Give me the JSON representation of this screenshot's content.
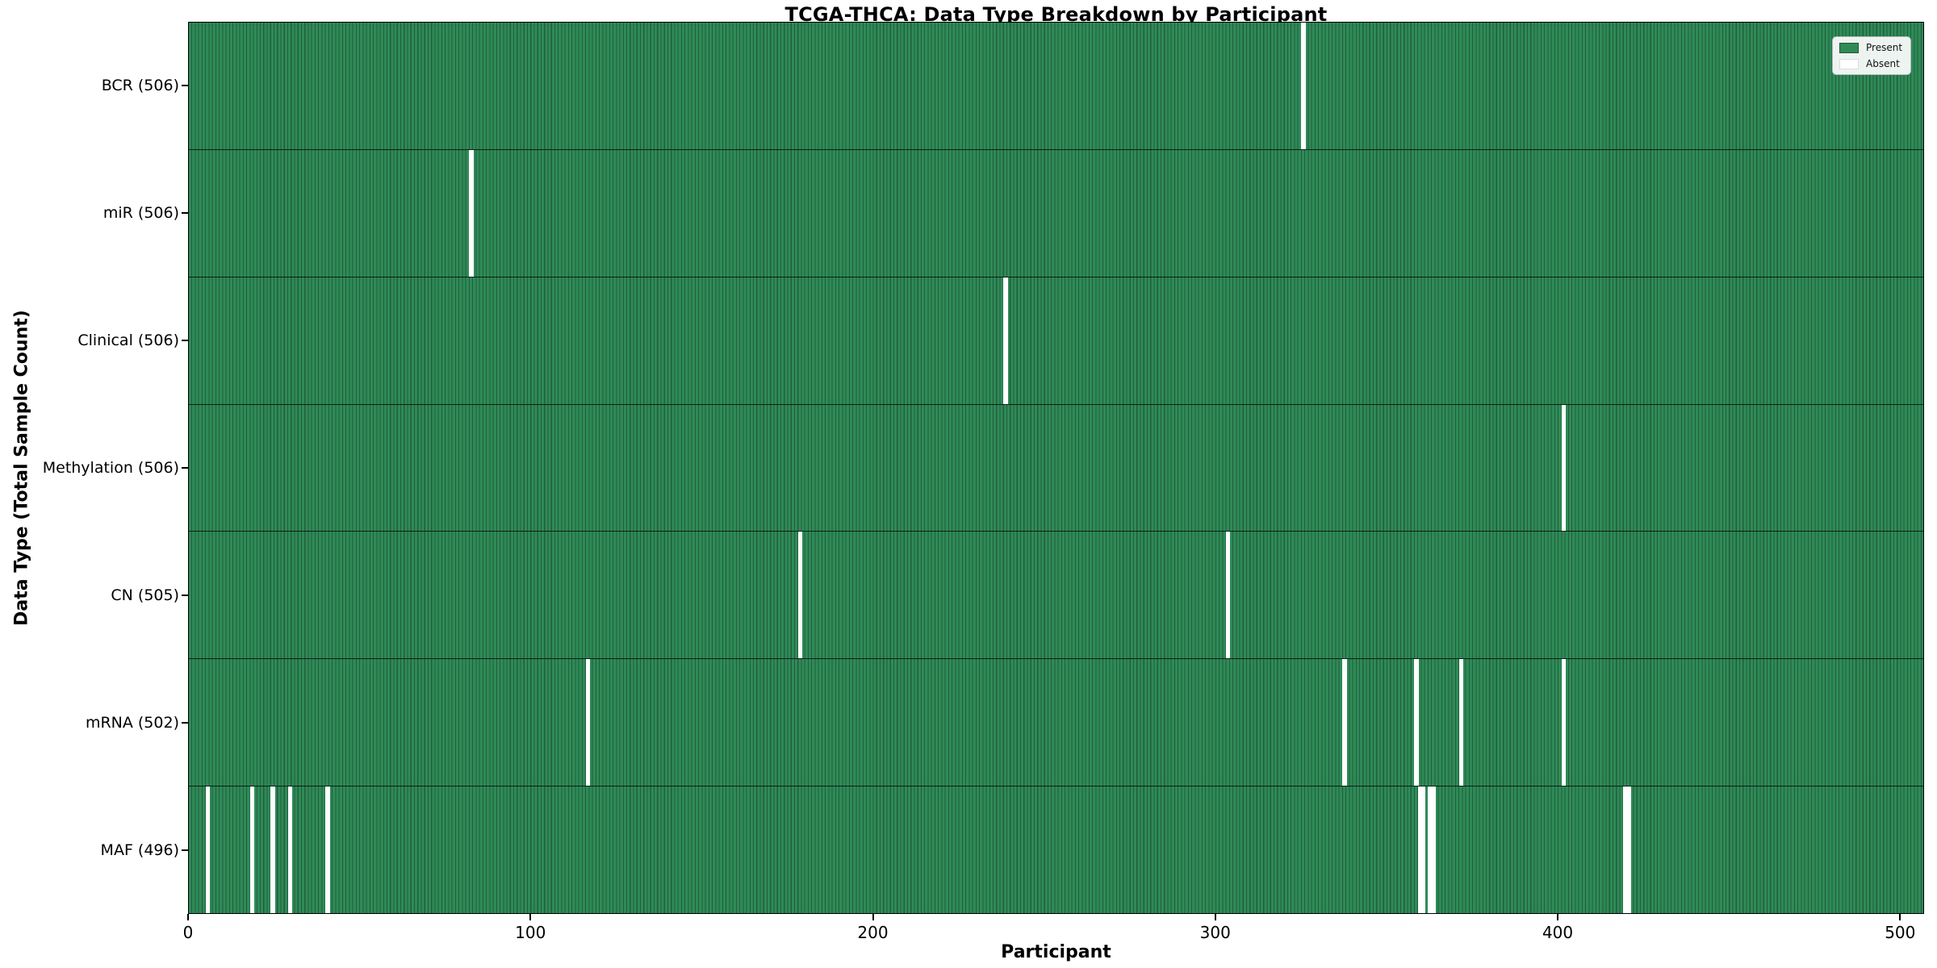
{
  "chart_data": {
    "type": "heatmap",
    "title": "TCGA-THCA: Data Type Breakdown by Participant",
    "xlabel": "Participant",
    "ylabel": "Data Type (Total Sample Count)",
    "x_ticks": [
      0,
      100,
      200,
      300,
      400,
      500
    ],
    "x_range": [
      0,
      507
    ],
    "n_participants": 507,
    "grid": false,
    "legend_position": "upper right",
    "legend": [
      {
        "label": "Present",
        "color": "#2e8b57"
      },
      {
        "label": "Absent",
        "color": "#ffffff"
      }
    ],
    "colors": {
      "present_fill": "#2e8b57",
      "present_edge": "#235c3e",
      "absent_fill": "#ffffff",
      "row_divider": "#0d1f14"
    },
    "rows": [
      {
        "label": "BCR (506)",
        "data_type": "BCR",
        "present_count": 506,
        "absent_participants": [
          325
        ]
      },
      {
        "label": "miR (506)",
        "data_type": "miR",
        "present_count": 506,
        "absent_participants": [
          82
        ]
      },
      {
        "label": "Clinical (506)",
        "data_type": "Clinical",
        "present_count": 506,
        "absent_participants": [
          238
        ]
      },
      {
        "label": "Methylation (506)",
        "data_type": "Methylation",
        "present_count": 506,
        "absent_participants": [
          401
        ]
      },
      {
        "label": "CN (505)",
        "data_type": "CN",
        "present_count": 505,
        "absent_participants": [
          178,
          303
        ]
      },
      {
        "label": "mRNA (502)",
        "data_type": "mRNA",
        "present_count": 502,
        "absent_participants": [
          116,
          337,
          358,
          371,
          401
        ]
      },
      {
        "label": "MAF (496)",
        "data_type": "MAF",
        "present_count": 496,
        "absent_participants": [
          5,
          18,
          24,
          29,
          40,
          359,
          360,
          362,
          363,
          419,
          420
        ]
      }
    ]
  }
}
